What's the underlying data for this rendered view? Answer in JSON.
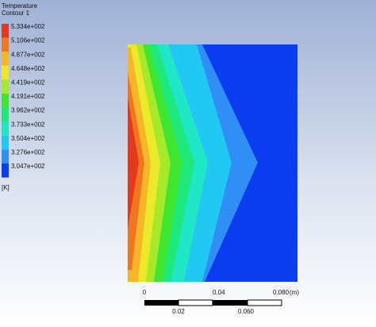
{
  "legend": {
    "title": "Temperature",
    "subtitle": "Contour 1",
    "levels": [
      "5.334e+002",
      "5.106e+002",
      "4.877e+002",
      "4.648e+002",
      "4.419e+002",
      "4.191e+002",
      "3.962e+002",
      "3.733e+002",
      "3.504e+002",
      "3.276e+002",
      "3.047e+002"
    ],
    "unit": "[K]"
  },
  "scale": {
    "top_labels": [
      "0",
      "0.04",
      "0.080",
      "(m)"
    ],
    "bottom_labels": [
      "0.02",
      "0.060"
    ]
  }
}
